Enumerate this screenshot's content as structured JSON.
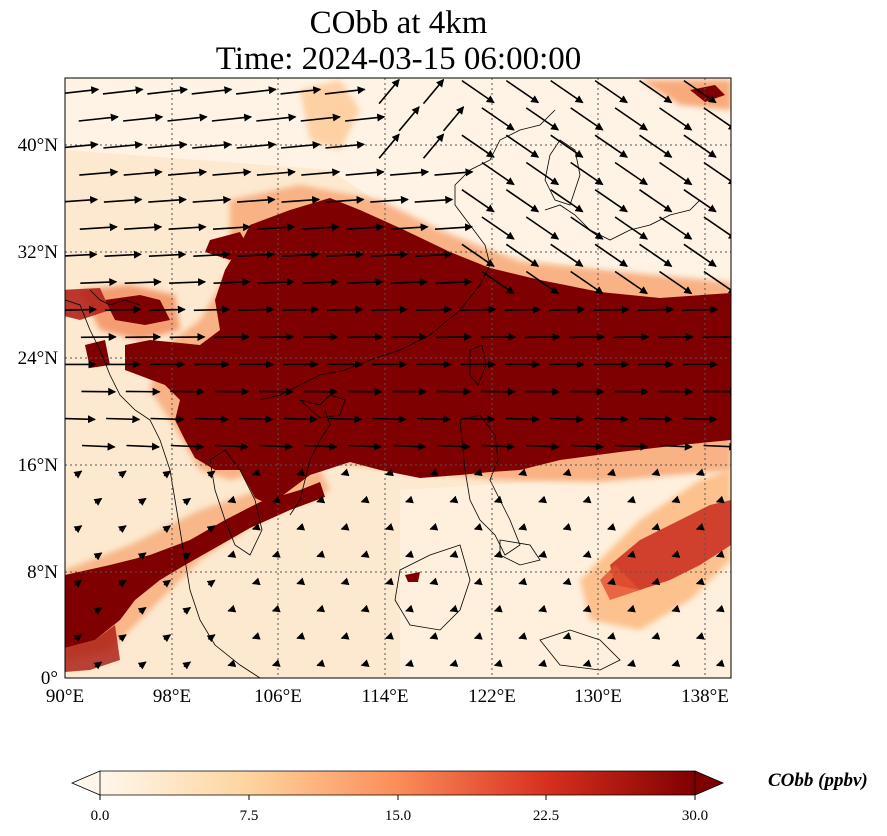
{
  "title": {
    "line1": "CObb at 4km",
    "line2": "Time: 2024-03-15 06:00:00"
  },
  "axes": {
    "lon_ticks": [
      "90°E",
      "98°E",
      "106°E",
      "114°E",
      "122°E",
      "130°E",
      "138°E"
    ],
    "lat_ticks": [
      "0°",
      "8°N",
      "16°N",
      "24°N",
      "32°N",
      "40°N"
    ],
    "lon_range": [
      90,
      140
    ],
    "lat_range": [
      0,
      45
    ],
    "gridlines": "dotted"
  },
  "colorbar": {
    "label": "CObb (ppbv)",
    "ticks": [
      "0.0",
      "7.5",
      "15.0",
      "22.5",
      "30.0"
    ],
    "range": [
      0,
      30
    ],
    "extend": "both",
    "colors": [
      "#fff7ec",
      "#fdd49e",
      "#fc8d59",
      "#d7301f",
      "#7f0000"
    ]
  },
  "field": {
    "variable": "CObb",
    "level": "4km",
    "units": "ppbv",
    "main_plume": "high concentrations (>30 ppbv) covering Indochina, South China and extending east past 138°E between about 16°N and 30°N",
    "secondary_plume": "plume from the Bay of Bengal (90°E, 4–8°N) toward the Gulf of Thailand",
    "weak_plume": "moderate values east of the Philippines around 130–138°E, 6–14°N"
  },
  "wind": {
    "description": "black wind vectors; strong westerlies north of 16°N, weak easterlies in the south"
  }
}
